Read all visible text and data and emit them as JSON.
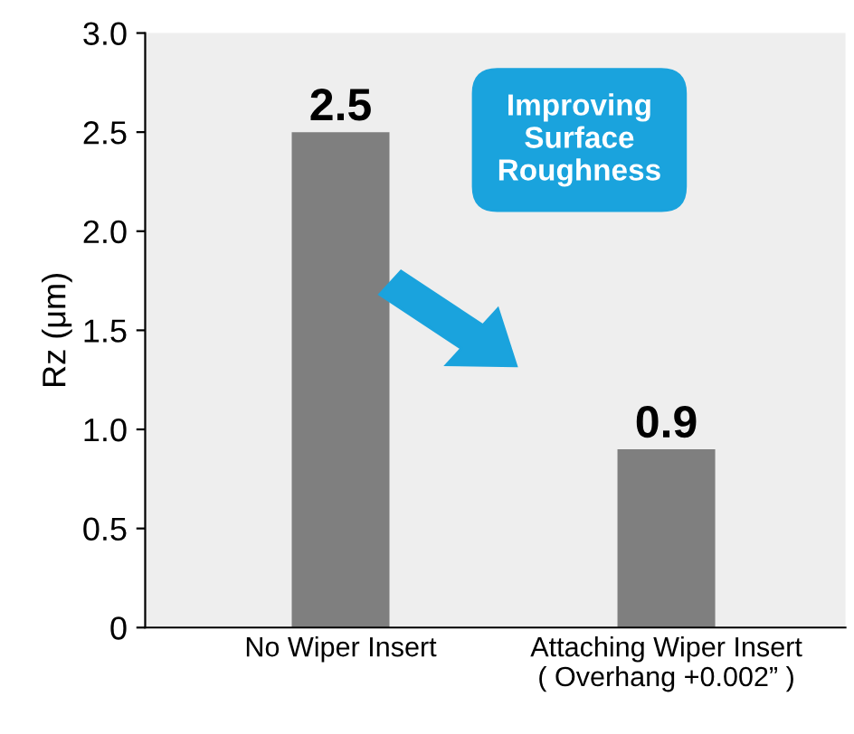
{
  "chart_data": {
    "type": "bar",
    "ylabel": "Rz (μm)",
    "categories": [
      "No Wiper Insert",
      "Attaching Wiper Insert\n( Overhang +0.002” )"
    ],
    "values": [
      2.5,
      0.9
    ],
    "color": "#7f7f7f",
    "data_labels": true,
    "ylim": [
      0,
      3.0
    ],
    "yticks": [
      {
        "value": 0,
        "label": "0"
      },
      {
        "value": 0.5,
        "label": "0.5"
      },
      {
        "value": 1,
        "label": "1.0"
      },
      {
        "value": 1.5,
        "label": "1.5"
      },
      {
        "value": 2,
        "label": "2.0"
      },
      {
        "value": 2.5,
        "label": "2.5"
      },
      {
        "value": 3,
        "label": "3.0"
      }
    ],
    "annotations": [
      "Improving\nSurface\nRoughness"
    ],
    "grid": false,
    "legend": false
  }
}
